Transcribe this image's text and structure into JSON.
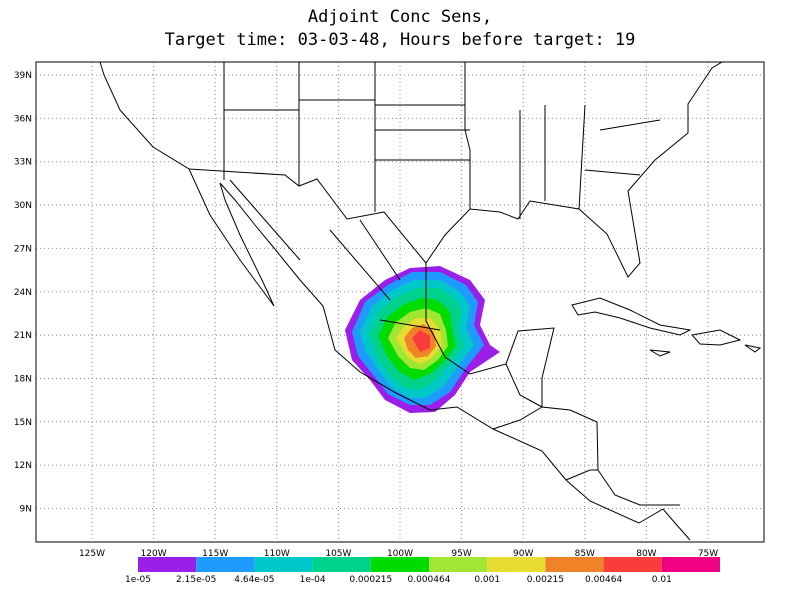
{
  "title": [
    "Adjoint Conc Sens,",
    "Target time: 03-03-48, Hours before target: 19"
  ],
  "lat_labels": [
    "39N",
    "36N",
    "33N",
    "30N",
    "27N",
    "24N",
    "21N",
    "18N",
    "15N",
    "12N",
    "9N"
  ],
  "lon_labels": [
    "125W",
    "120W",
    "115W",
    "110W",
    "105W",
    "100W",
    "95W",
    "90W",
    "85W",
    "80W",
    "75W"
  ],
  "colorbar": {
    "colors": [
      "#9b1fe8",
      "#1e9bff",
      "#00c8c8",
      "#00d28c",
      "#00dc00",
      "#a0e632",
      "#e6dc32",
      "#f08228",
      "#fa3c3c",
      "#f00082"
    ],
    "labels": [
      "1e-05",
      "2.15e-05",
      "4.64e-05",
      "1e-04",
      "0.000215",
      "0.000464",
      "0.001",
      "0.00215",
      "0.00464",
      "0.01"
    ]
  }
}
